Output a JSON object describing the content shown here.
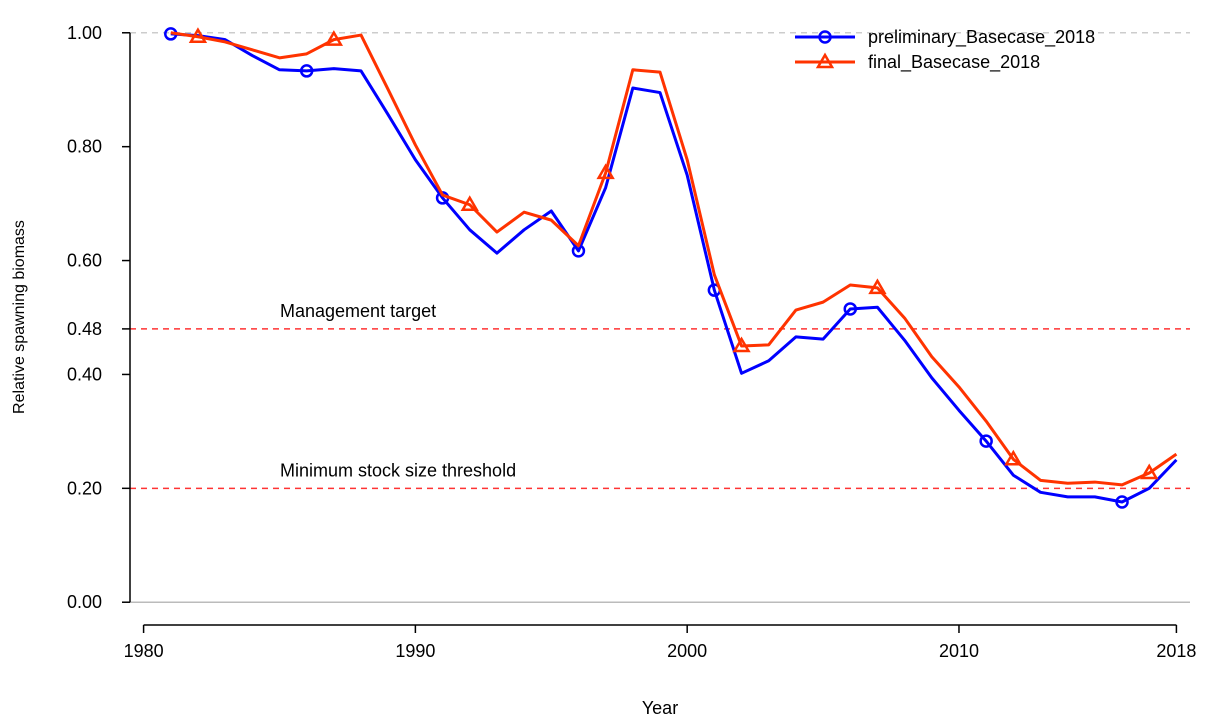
{
  "chart_data": {
    "type": "line",
    "xlabel": "Year",
    "ylabel": "Relative spawning biomass",
    "x": [
      1981,
      1982,
      1983,
      1984,
      1985,
      1986,
      1987,
      1988,
      1989,
      1990,
      1991,
      1992,
      1993,
      1994,
      1995,
      1996,
      1997,
      1998,
      1999,
      2000,
      2001,
      2002,
      2003,
      2004,
      2005,
      2006,
      2007,
      2008,
      2009,
      2010,
      2011,
      2012,
      2013,
      2014,
      2015,
      2016,
      2017,
      2018
    ],
    "series": [
      {
        "name": "preliminary_Basecase_2018",
        "color": "#0000ff",
        "marker": "circle",
        "values": [
          0.998,
          0.995,
          0.988,
          0.96,
          0.935,
          0.933,
          0.937,
          0.933,
          0.856,
          0.777,
          0.71,
          0.654,
          0.613,
          0.654,
          0.687,
          0.617,
          0.728,
          0.903,
          0.895,
          0.75,
          0.548,
          0.402,
          0.424,
          0.466,
          0.462,
          0.515,
          0.518,
          0.46,
          0.394,
          0.337,
          0.283,
          0.223,
          0.193,
          0.185,
          0.185,
          0.176,
          0.2,
          0.25
        ]
      },
      {
        "name": "final_Basecase_2018",
        "color": "#ff3300",
        "marker": "triangle",
        "values": [
          1.0,
          0.993,
          0.984,
          0.97,
          0.956,
          0.963,
          0.988,
          0.996,
          0.9,
          0.803,
          0.715,
          0.698,
          0.65,
          0.685,
          0.671,
          0.626,
          0.754,
          0.935,
          0.931,
          0.777,
          0.575,
          0.45,
          0.452,
          0.513,
          0.527,
          0.557,
          0.552,
          0.499,
          0.431,
          0.378,
          0.318,
          0.251,
          0.214,
          0.209,
          0.211,
          0.206,
          0.227,
          0.26
        ]
      }
    ],
    "xlim": [
      1979.5,
      2018.5
    ],
    "xticks": [
      1980,
      1990,
      2000,
      2010,
      2018
    ],
    "ylim": [
      -0.04,
      1.04
    ],
    "yticks": [
      {
        "value": 0,
        "label": "0.00"
      },
      {
        "value": 0.2,
        "label": "0.20"
      },
      {
        "value": 0.4,
        "label": "0.40"
      },
      {
        "value": 0.48,
        "label": "0.48"
      },
      {
        "value": 0.6,
        "label": "0.60"
      },
      {
        "value": 0.8,
        "label": "0.80"
      },
      {
        "value": 1,
        "label": "1.00"
      }
    ],
    "hlines": [
      {
        "value": 1,
        "color": "#cccccc",
        "dashed": true
      },
      {
        "value": 0,
        "color": "#bbbbbb",
        "dashed": false
      },
      {
        "value": 0.48,
        "color": "#ff3333",
        "dashed": true,
        "label": "Management target"
      },
      {
        "value": 0.2,
        "color": "#ff3333",
        "dashed": true,
        "label": "Minimum stock size threshold"
      }
    ],
    "legend": "top-right"
  }
}
